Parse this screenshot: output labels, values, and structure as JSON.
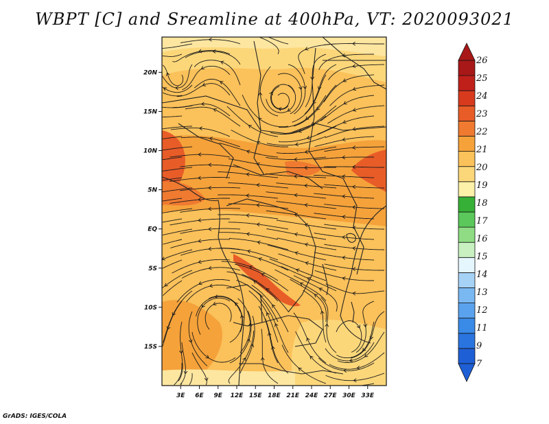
{
  "title": "WBPT [C] and Sreamline at 400hPa, VT: 2020093021",
  "credit": "GrADS: IGES/COLA",
  "map": {
    "lon_range": [
      0,
      36
    ],
    "lat_range": [
      -20,
      24.5
    ],
    "x_ticks": [
      "3E",
      "6E",
      "9E",
      "12E",
      "15E",
      "18E",
      "21E",
      "24E",
      "27E",
      "30E",
      "33E"
    ],
    "x_tick_values": [
      3,
      6,
      9,
      12,
      15,
      18,
      21,
      24,
      27,
      30,
      33
    ],
    "y_ticks": [
      "20N",
      "15N",
      "10N",
      "5N",
      "EQ",
      "5S",
      "10S",
      "15S"
    ],
    "y_tick_values": [
      20,
      15,
      10,
      5,
      0,
      -5,
      -10,
      -15
    ],
    "field_colors": {
      "background": "#fbc15a",
      "warm": "#f5a23a",
      "hot": "#ef7a30",
      "hottest": "#e85c28",
      "cool": "#fcd77a",
      "coolest": "#fde6a0"
    }
  },
  "colorbar": {
    "labels": [
      "7",
      "9",
      "11",
      "12",
      "13",
      "14",
      "15",
      "16",
      "17",
      "18",
      "19",
      "20",
      "21",
      "22",
      "23",
      "24",
      "25",
      "26"
    ],
    "colors": [
      "#1f5fd6",
      "#2a74e0",
      "#3a8ae8",
      "#5aa2ee",
      "#7ab8f2",
      "#a6d2f6",
      "#e6f6ff",
      "#c8f0c0",
      "#8fdc84",
      "#5ac85a",
      "#36b036",
      "#fdf0a8",
      "#fcd77a",
      "#fbc15a",
      "#f5a23a",
      "#ef7a30",
      "#e85c28",
      "#d83a1e",
      "#c0201a",
      "#a81818"
    ]
  }
}
